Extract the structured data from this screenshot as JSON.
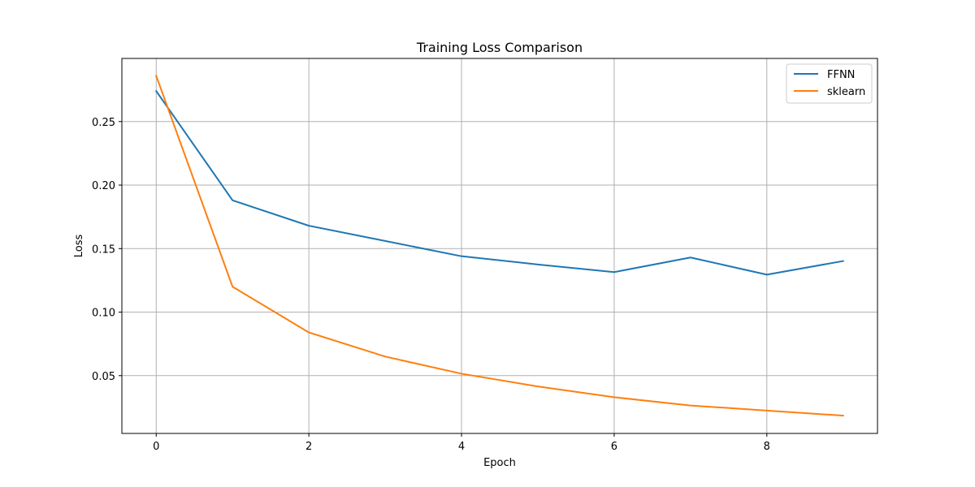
{
  "chart_data": {
    "type": "line",
    "title": "Training Loss Comparison",
    "xlabel": "Epoch",
    "ylabel": "Loss",
    "xlim": [
      -0.45,
      9.45
    ],
    "ylim": [
      0.0045,
      0.2997
    ],
    "xticks": [
      0,
      2,
      4,
      6,
      8
    ],
    "yticks": [
      0.05,
      0.1,
      0.15,
      0.2,
      0.25
    ],
    "xtick_labels": [
      "0",
      "2",
      "4",
      "6",
      "8"
    ],
    "ytick_labels": [
      "0.05",
      "0.10",
      "0.15",
      "0.20",
      "0.25"
    ],
    "grid": true,
    "legend_position": "top-right",
    "x": [
      0,
      1,
      2,
      3,
      4,
      5,
      6,
      7,
      8,
      9
    ],
    "series": [
      {
        "name": "FFNN",
        "color": "#1f77b4",
        "values": [
          0.274,
          0.188,
          0.168,
          0.156,
          0.144,
          0.1375,
          0.1315,
          0.143,
          0.1295,
          0.1402
        ]
      },
      {
        "name": "sklearn",
        "color": "#ff7f0e",
        "values": [
          0.286,
          0.12,
          0.084,
          0.065,
          0.0515,
          0.0415,
          0.033,
          0.0265,
          0.0225,
          0.0185
        ]
      }
    ]
  }
}
